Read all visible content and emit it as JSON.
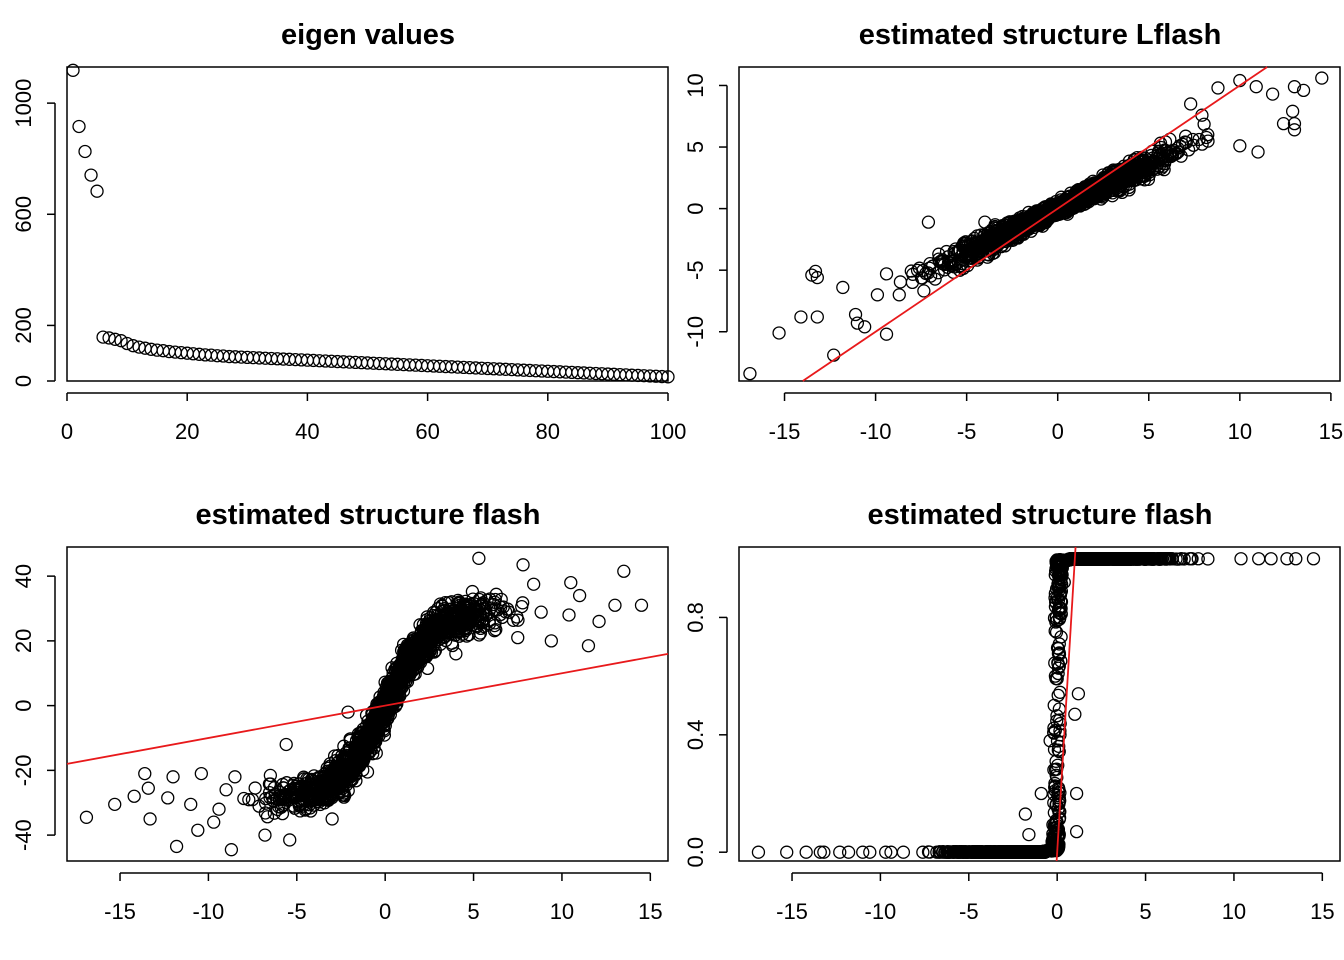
{
  "chart_data": [
    {
      "type": "scatter",
      "title": "eigen values",
      "xlabel": "",
      "ylabel": "",
      "xlim": [
        0,
        100
      ],
      "ylim": [
        0,
        1130
      ],
      "xticks": [
        "0",
        "20",
        "40",
        "60",
        "80",
        "100"
      ],
      "yticks": [
        "0",
        "200",
        "600",
        "1000"
      ],
      "grid": false,
      "values": [
        1118,
        916,
        826,
        741,
        683,
        158,
        155,
        150,
        145,
        135,
        127,
        122,
        118,
        114,
        111,
        109,
        106,
        104,
        102,
        100,
        98,
        96,
        94,
        93,
        91,
        90,
        88,
        87,
        86,
        85,
        84,
        83,
        82,
        81,
        80,
        79,
        78,
        77,
        76,
        75,
        74,
        73,
        72,
        71,
        70,
        69,
        68,
        67,
        66,
        65,
        64,
        63,
        62,
        61,
        60,
        59,
        58,
        57,
        56,
        55,
        54,
        53,
        52,
        51,
        50,
        49,
        48,
        47,
        46,
        45,
        44,
        43,
        42,
        41,
        40,
        39,
        38,
        37,
        36,
        35,
        34,
        33,
        32,
        31,
        30,
        29,
        28,
        27,
        26,
        25,
        24,
        23,
        22,
        21,
        20,
        19,
        18,
        17,
        16,
        15
      ]
    },
    {
      "type": "scatter",
      "title": "estimated structure Lflash",
      "xlabel": "",
      "ylabel": "",
      "xlim": [
        -17.5,
        15.5
      ],
      "ylim": [
        -14,
        11.5
      ],
      "xticks": [
        "-15",
        "-10",
        "-5",
        "0",
        "5",
        "10",
        "15"
      ],
      "yticks": [
        "-10",
        "-5",
        "0",
        "5",
        "10"
      ],
      "grid": false,
      "trend": "cloud",
      "reference_line": {
        "slope": 1.0,
        "intercept": 0.0,
        "color": "#e8191b"
      },
      "points": [
        [
          -16.9,
          -13.4
        ],
        [
          -15.3,
          -10.1
        ],
        [
          -13.5,
          -5.4
        ],
        [
          -13.3,
          -5.1
        ],
        [
          -13.2,
          -5.6
        ],
        [
          -13.2,
          -8.8
        ],
        [
          -12.3,
          -11.9
        ],
        [
          -14.1,
          -8.8
        ],
        [
          -11.8,
          -6.4
        ],
        [
          -11.1,
          -8.6
        ],
        [
          -11.0,
          -9.3
        ],
        [
          -10.6,
          -9.6
        ],
        [
          -9.4,
          -10.2
        ],
        [
          -9.9,
          -7.0
        ],
        [
          -9.4,
          -5.3
        ],
        [
          -8.7,
          -7.0
        ],
        [
          -7.1,
          -1.1
        ],
        [
          -4.0,
          -1.1
        ],
        [
          10.0,
          10.4
        ],
        [
          10.9,
          9.9
        ],
        [
          11.8,
          9.3
        ],
        [
          13.0,
          9.9
        ],
        [
          13.5,
          9.6
        ],
        [
          14.5,
          10.6
        ],
        [
          12.9,
          7.9
        ],
        [
          12.4,
          6.9
        ],
        [
          13.0,
          6.9
        ],
        [
          13.0,
          6.4
        ],
        [
          11.0,
          4.6
        ],
        [
          10.0,
          5.1
        ],
        [
          8.8,
          9.8
        ],
        [
          7.3,
          8.5
        ]
      ]
    },
    {
      "type": "scatter",
      "title": "estimated structure flash",
      "xlabel": "",
      "ylabel": "",
      "xlim": [
        -18,
        16
      ],
      "ylim": [
        -48,
        49
      ],
      "xticks": [
        "-15",
        "-10",
        "-5",
        "0",
        "5",
        "10",
        "15"
      ],
      "yticks": [
        "-40",
        "-20",
        "0",
        "20",
        "40"
      ],
      "grid": false,
      "trend": "sigmoid",
      "reference_line": {
        "slope": 1.0,
        "intercept": 0.0,
        "color": "#e8191b"
      },
      "points": [
        [
          -16.9,
          -34.5
        ],
        [
          -15.3,
          -30.5
        ],
        [
          -14.2,
          -28.0
        ],
        [
          -13.6,
          -21.0
        ],
        [
          -13.4,
          -25.5
        ],
        [
          -13.3,
          -35.0
        ],
        [
          -12.3,
          -28.5
        ],
        [
          -12.0,
          -22.0
        ],
        [
          -11.8,
          -43.5
        ],
        [
          -11.0,
          -30.5
        ],
        [
          -10.6,
          -38.5
        ],
        [
          -10.4,
          -21.0
        ],
        [
          -9.7,
          -36.0
        ],
        [
          -9.4,
          -32.0
        ],
        [
          -9.0,
          -26.0
        ],
        [
          -8.7,
          -44.5
        ],
        [
          -8.5,
          -22.0
        ],
        [
          -6.8,
          -40.0
        ],
        [
          -5.4,
          -41.5
        ],
        [
          -5.6,
          -12.0
        ],
        [
          -3.0,
          -35.0
        ],
        [
          -2.1,
          -2.0
        ],
        [
          -1.0,
          -20.5
        ],
        [
          0.3,
          5.0
        ],
        [
          2.4,
          11.5
        ],
        [
          4.0,
          16.0
        ],
        [
          5.3,
          45.5
        ],
        [
          7.5,
          21.0
        ],
        [
          7.8,
          43.5
        ],
        [
          8.4,
          37.5
        ],
        [
          9.4,
          20.0
        ],
        [
          10.4,
          28.0
        ],
        [
          10.5,
          38.0
        ],
        [
          11.0,
          34.0
        ],
        [
          11.5,
          18.5
        ],
        [
          12.1,
          26.0
        ],
        [
          13.0,
          31.0
        ],
        [
          13.5,
          41.5
        ],
        [
          14.5,
          31.0
        ]
      ]
    },
    {
      "type": "scatter",
      "title": "estimated structure flash",
      "xlabel": "",
      "ylabel": "",
      "xlim": [
        -18,
        16
      ],
      "ylim": [
        -0.03,
        1.04
      ],
      "xticks": [
        "-15",
        "-10",
        "-5",
        "0",
        "5",
        "10",
        "15"
      ],
      "yticks": [
        "0.0",
        "0.4",
        "0.8"
      ],
      "grid": false,
      "trend": "step",
      "reference_line": {
        "slope": 1.0,
        "intercept": 0.0,
        "color": "#e8191b"
      },
      "points": [
        [
          -16.9,
          0.0
        ],
        [
          -15.3,
          0.0
        ],
        [
          -14.2,
          0.0
        ],
        [
          -13.4,
          0.0
        ],
        [
          -13.2,
          0.0
        ],
        [
          -12.3,
          0.0
        ],
        [
          -11.8,
          0.0
        ],
        [
          -11.0,
          0.0
        ],
        [
          -10.6,
          0.0
        ],
        [
          -9.7,
          0.0
        ],
        [
          -9.4,
          0.0
        ],
        [
          -8.7,
          0.0
        ],
        [
          -1.8,
          0.13
        ],
        [
          -1.6,
          0.06
        ],
        [
          -0.9,
          0.2
        ],
        [
          -0.4,
          0.38
        ],
        [
          -0.1,
          0.6
        ],
        [
          0.4,
          0.92
        ],
        [
          1.0,
          0.47
        ],
        [
          1.1,
          0.2
        ],
        [
          1.1,
          0.07
        ],
        [
          1.2,
          0.54
        ],
        [
          10.4,
          1.0
        ],
        [
          11.4,
          1.0
        ],
        [
          12.1,
          1.0
        ],
        [
          13.0,
          1.0
        ],
        [
          13.5,
          1.0
        ],
        [
          14.5,
          1.0
        ]
      ]
    }
  ]
}
